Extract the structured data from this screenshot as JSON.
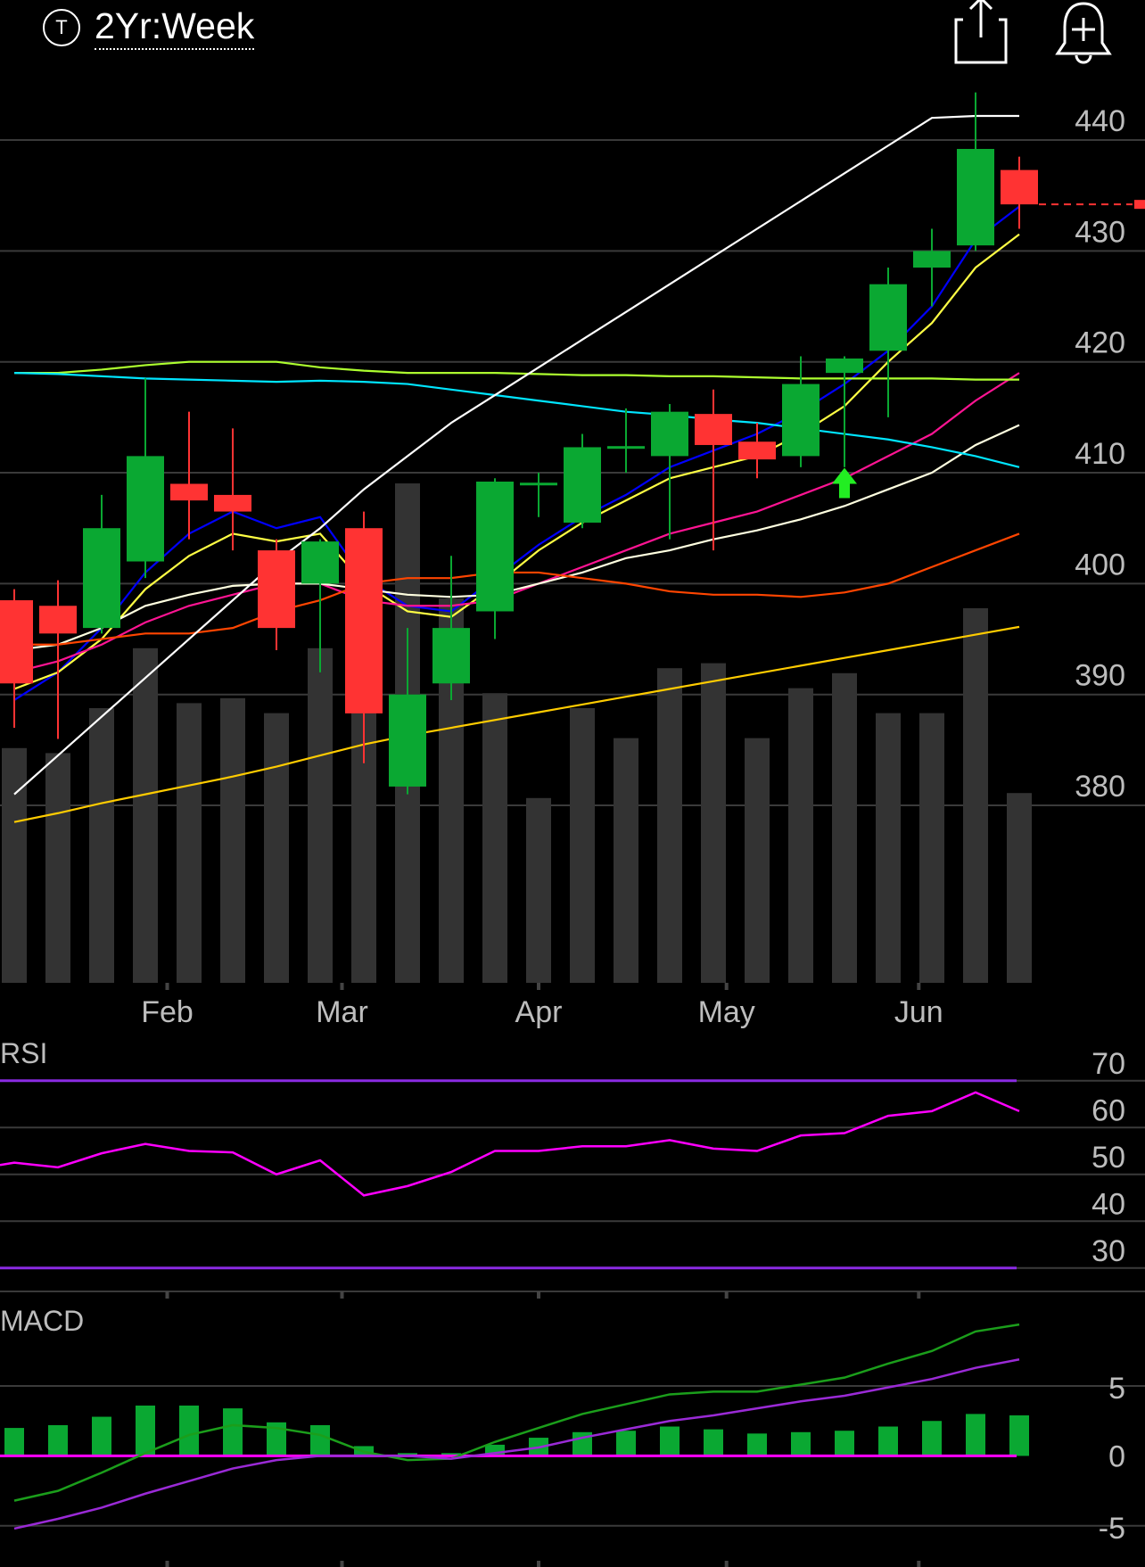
{
  "header": {
    "range_label": "2Yr:Week",
    "type_glyph": "T",
    "share_icon": "share-icon",
    "alert_icon": "bell-plus-icon"
  },
  "chart_data": [
    {
      "type": "candlestick",
      "panel": "price",
      "ylim": [
        364,
        447
      ],
      "ytick_labels": [
        "440",
        "430",
        "420",
        "410",
        "400",
        "390",
        "380"
      ],
      "yticks": [
        440,
        430,
        420,
        410,
        400,
        390,
        380
      ],
      "xtick_labels": [
        "Feb",
        "Mar",
        "Apr",
        "May",
        "Jun"
      ],
      "xtick_weeks": [
        3.5,
        7.5,
        12,
        16.3,
        20.7
      ],
      "candles": [
        {
          "o": 398.5,
          "h": 399.5,
          "l": 387.0,
          "c": 391.0
        },
        {
          "o": 398.0,
          "h": 400.3,
          "l": 386.0,
          "c": 395.5
        },
        {
          "o": 396.0,
          "h": 408.0,
          "l": 395.5,
          "c": 405.0
        },
        {
          "o": 402.0,
          "h": 418.5,
          "l": 400.5,
          "c": 411.5
        },
        {
          "o": 409.0,
          "h": 415.5,
          "l": 404.0,
          "c": 407.5
        },
        {
          "o": 408.0,
          "h": 414.0,
          "l": 403.0,
          "c": 406.5
        },
        {
          "o": 403.0,
          "h": 404.0,
          "l": 394.0,
          "c": 396.0
        },
        {
          "o": 400.0,
          "h": 404.0,
          "l": 392.0,
          "c": 403.8
        },
        {
          "o": 405.0,
          "h": 406.5,
          "l": 383.8,
          "c": 388.3
        },
        {
          "o": 381.7,
          "h": 396.0,
          "l": 381.0,
          "c": 390.0
        },
        {
          "o": 391.0,
          "h": 402.5,
          "l": 389.5,
          "c": 396.0
        },
        {
          "o": 397.5,
          "h": 409.5,
          "l": 395.0,
          "c": 409.2
        },
        {
          "o": 408.9,
          "h": 410.0,
          "l": 406.0,
          "c": 409.1
        },
        {
          "o": 405.5,
          "h": 413.5,
          "l": 405.0,
          "c": 412.3
        },
        {
          "o": 412.3,
          "h": 415.8,
          "l": 410.0,
          "c": 412.4
        },
        {
          "o": 411.5,
          "h": 416.2,
          "l": 404.0,
          "c": 415.5
        },
        {
          "o": 415.3,
          "h": 417.5,
          "l": 403.0,
          "c": 412.5
        },
        {
          "o": 412.8,
          "h": 414.5,
          "l": 409.5,
          "c": 411.2
        },
        {
          "o": 411.5,
          "h": 420.5,
          "l": 410.5,
          "c": 418.0
        },
        {
          "o": 419.0,
          "h": 420.5,
          "l": 410.5,
          "c": 420.3
        },
        {
          "o": 421.0,
          "h": 428.5,
          "l": 415.0,
          "c": 427.0
        },
        {
          "o": 428.5,
          "h": 432.0,
          "l": 425.0,
          "c": 430.0
        },
        {
          "o": 430.5,
          "h": 444.3,
          "l": 430.0,
          "c": 439.2
        },
        {
          "o": 437.3,
          "h": 438.5,
          "l": 432.0,
          "c": 434.2
        }
      ],
      "last_price": 434.2,
      "signal_arrow_week": 19,
      "signal_arrow_price": 409.0,
      "volume_relative": [
        0.47,
        0.46,
        0.55,
        0.67,
        0.56,
        0.57,
        0.54,
        0.67,
        0.57,
        1.0,
        0.77,
        0.58,
        0.37,
        0.55,
        0.49,
        0.63,
        0.64,
        0.49,
        0.59,
        0.62,
        0.54,
        0.54,
        0.75,
        0.38
      ],
      "overlays": [
        {
          "name": "ma1",
          "color": "#0000ff",
          "values": [
            389.5,
            392.0,
            396.0,
            401.0,
            404.5,
            406.5,
            405.0,
            406.0,
            400.5,
            398.0,
            397.5,
            400.5,
            403.5,
            406.0,
            408.0,
            410.5,
            412.0,
            413.5,
            415.5,
            418.0,
            421.0,
            425.0,
            431.0,
            434.0
          ]
        },
        {
          "name": "ma2",
          "color": "#ffff44",
          "values": [
            390.5,
            392.0,
            395.0,
            399.5,
            402.5,
            404.5,
            403.8,
            404.5,
            400.0,
            397.5,
            397.0,
            399.8,
            403.0,
            405.5,
            407.5,
            409.5,
            410.5,
            411.5,
            413.5,
            416.0,
            420.0,
            423.5,
            428.5,
            431.5
          ]
        },
        {
          "name": "ma3",
          "color": "#ff1493",
          "values": [
            392.0,
            393.0,
            394.5,
            396.5,
            398.0,
            399.0,
            400.0,
            400.0,
            398.5,
            398.0,
            398.0,
            398.5,
            400.0,
            401.5,
            403.0,
            404.5,
            405.5,
            406.5,
            408.0,
            409.5,
            411.5,
            413.5,
            416.5,
            419.0
          ]
        },
        {
          "name": "ma4",
          "color": "#ffffe0",
          "values": [
            394.0,
            394.5,
            396.0,
            398.0,
            399.0,
            399.8,
            400.0,
            400.0,
            399.5,
            399.0,
            398.8,
            399.0,
            400.0,
            401.0,
            402.3,
            403.0,
            404.0,
            404.8,
            405.8,
            407.0,
            408.5,
            410.0,
            412.5,
            414.3
          ]
        },
        {
          "name": "ma5",
          "color": "#ff4500",
          "values": [
            394.5,
            394.5,
            395.0,
            395.5,
            395.5,
            396.0,
            397.5,
            398.5,
            400.0,
            400.5,
            400.5,
            401.0,
            401.0,
            400.5,
            400.0,
            399.3,
            399.0,
            399.0,
            398.8,
            399.2,
            400.0,
            401.5,
            403.0,
            404.5
          ]
        },
        {
          "name": "ma6",
          "color": "#adff2f",
          "values": [
            419.0,
            419.0,
            419.3,
            419.7,
            420.0,
            420.0,
            420.0,
            419.5,
            419.2,
            419.0,
            419.0,
            419.0,
            418.9,
            418.8,
            418.8,
            418.7,
            418.7,
            418.6,
            418.5,
            418.5,
            418.5,
            418.5,
            418.4,
            418.4
          ]
        },
        {
          "name": "ma7",
          "color": "#00e5ff",
          "values": [
            419.0,
            418.9,
            418.7,
            418.5,
            418.4,
            418.3,
            418.2,
            418.3,
            418.2,
            418.0,
            417.5,
            417.0,
            416.5,
            416.0,
            415.5,
            415.2,
            414.8,
            414.5,
            414.0,
            413.5,
            413.0,
            412.3,
            411.5,
            410.5
          ]
        },
        {
          "name": "ma8",
          "color": "#ffffff",
          "values": [
            381.0,
            384.5,
            388.0,
            391.5,
            395.0,
            398.5,
            402.0,
            405.0,
            408.5,
            411.5,
            414.5,
            417.0,
            419.5,
            422.0,
            424.5,
            427.0,
            429.5,
            432.0,
            434.5,
            437.0,
            439.5,
            442.0,
            444.5,
            447.0
          ]
        },
        {
          "name": "ma9",
          "color": "#ffcc00",
          "values": [
            378.5,
            379.3,
            380.2,
            381.0,
            381.8,
            382.6,
            383.5,
            384.5,
            385.5,
            386.3,
            387.0,
            387.7,
            388.4,
            389.1,
            389.8,
            390.5,
            391.2,
            391.9,
            392.6,
            393.3,
            394.0,
            394.7,
            395.4,
            396.1
          ]
        }
      ]
    },
    {
      "type": "line",
      "panel": "rsi",
      "title": "RSI",
      "ylim": [
        25,
        77
      ],
      "ytick_labels": [
        "70",
        "60",
        "50",
        "40",
        "30"
      ],
      "yticks": [
        70,
        60,
        50,
        40,
        30
      ],
      "upper_band": 70,
      "lower_band": 30,
      "series": [
        {
          "color": "#ff00ff",
          "values": [
            52.5,
            51.5,
            54.5,
            56.5,
            55.0,
            54.7,
            50.0,
            53.0,
            45.5,
            47.5,
            50.5,
            55.0,
            55.0,
            56.0,
            56.0,
            57.3,
            55.5,
            55.0,
            58.3,
            58.8,
            62.5,
            63.5,
            67.5,
            63.5
          ]
        }
      ]
    },
    {
      "type": "bar+line",
      "panel": "macd",
      "title": "MACD",
      "ylim": [
        -7.5,
        11
      ],
      "ytick_labels": [
        "5",
        "0",
        "-5"
      ],
      "yticks": [
        5,
        0,
        -5
      ],
      "zero_line_color": "#ff00ff",
      "histogram": [
        2.0,
        2.2,
        2.8,
        3.6,
        3.6,
        3.4,
        2.4,
        2.2,
        0.7,
        0.2,
        0.2,
        0.8,
        1.3,
        1.7,
        1.8,
        2.1,
        1.9,
        1.6,
        1.7,
        1.8,
        2.1,
        2.5,
        3.0,
        2.9
      ],
      "series": [
        {
          "color": "#1b9e1b",
          "values": [
            -3.2,
            -2.5,
            -1.2,
            0.2,
            1.5,
            2.2,
            2.0,
            1.5,
            0.3,
            -0.3,
            -0.2,
            1.0,
            2.0,
            3.0,
            3.7,
            4.4,
            4.6,
            4.6,
            5.1,
            5.6,
            6.6,
            7.5,
            8.9,
            9.4
          ]
        },
        {
          "color": "#9a2ad6",
          "values": [
            -5.2,
            -4.5,
            -3.7,
            -2.7,
            -1.8,
            -0.9,
            -0.3,
            0.0,
            0.0,
            0.0,
            -0.2,
            0.2,
            0.6,
            1.3,
            1.9,
            2.5,
            2.9,
            3.4,
            3.9,
            4.3,
            4.9,
            5.5,
            6.3,
            6.9
          ]
        }
      ]
    }
  ]
}
